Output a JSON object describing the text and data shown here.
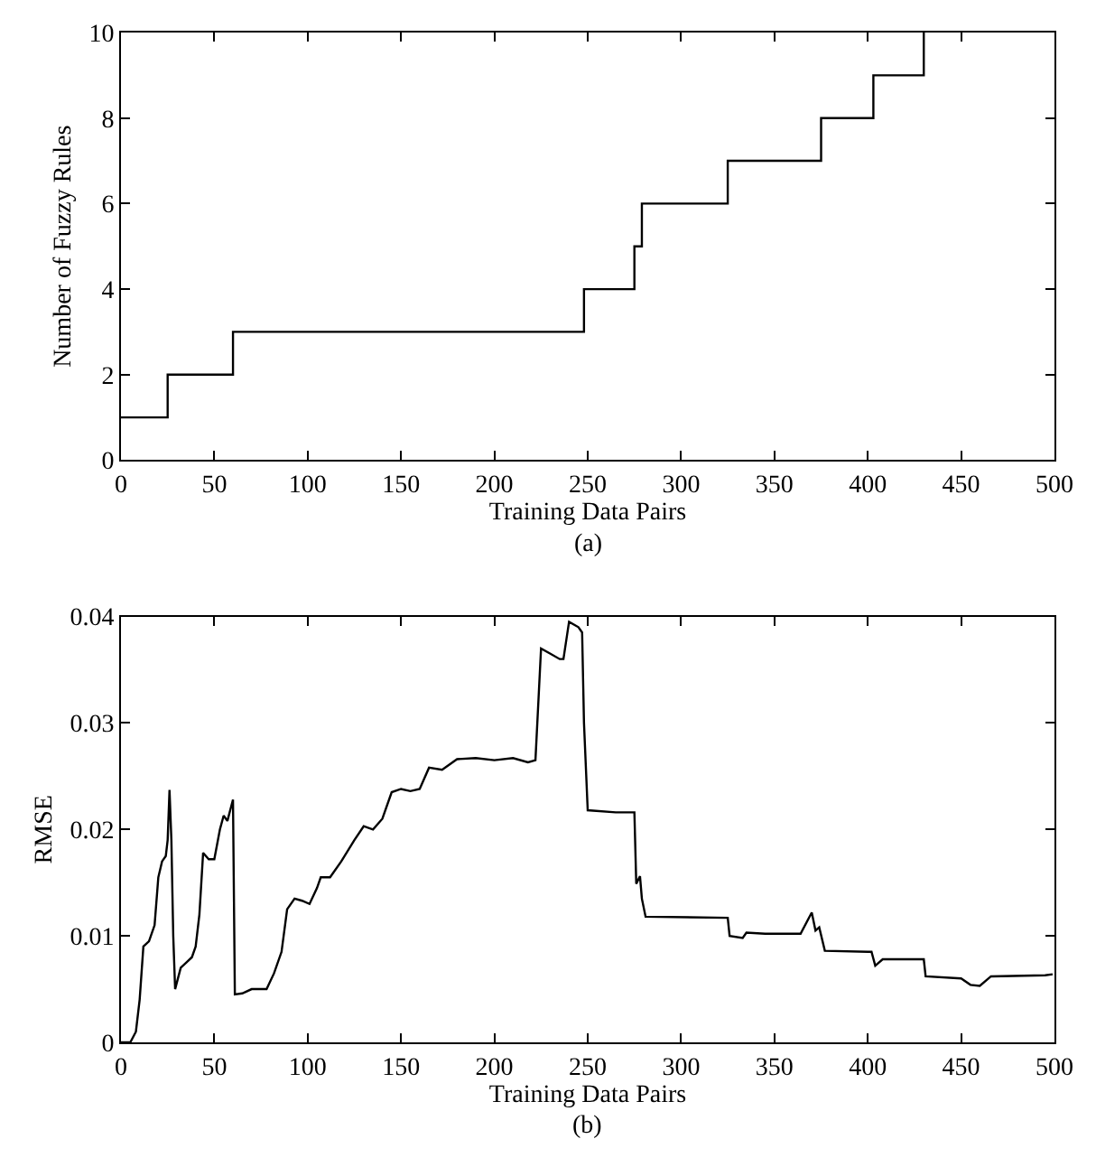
{
  "chart_data": [
    {
      "type": "step",
      "xlabel": "Training Data Pairs",
      "ylabel": "Number of Fuzzy Rules",
      "annotations": [
        "(a)"
      ],
      "xlim": [
        0,
        500
      ],
      "ylim": [
        0,
        10
      ],
      "xticks": [
        0,
        50,
        100,
        150,
        200,
        250,
        300,
        350,
        400,
        450,
        500
      ],
      "yticks": [
        0,
        2,
        4,
        6,
        8,
        10
      ],
      "x": [
        0,
        25,
        60,
        248,
        275,
        279,
        325,
        375,
        403,
        430
      ],
      "series": [
        {
          "color": "#000000",
          "values": [
            1,
            2,
            3,
            4,
            5,
            6,
            7,
            8,
            9,
            10
          ]
        }
      ]
    },
    {
      "type": "line",
      "xlabel": "Training Data Pairs",
      "ylabel": "RMSE",
      "annotations": [
        "(b)"
      ],
      "xlim": [
        0,
        500
      ],
      "ylim": [
        0,
        0.04
      ],
      "xticks": [
        0,
        50,
        100,
        150,
        200,
        250,
        300,
        350,
        400,
        450,
        500
      ],
      "yticks": [
        0,
        0.01,
        0.02,
        0.03,
        0.04
      ],
      "x": [
        0,
        5,
        8,
        10,
        12,
        15,
        18,
        20,
        22,
        24,
        25,
        26,
        27,
        28,
        29,
        32,
        35,
        38,
        40,
        42,
        44,
        47,
        50,
        53,
        55,
        57,
        60,
        61,
        65,
        70,
        78,
        82,
        86,
        89,
        93,
        97,
        101,
        105,
        107,
        112,
        118,
        125,
        130,
        135,
        140,
        145,
        150,
        155,
        160,
        165,
        172,
        180,
        190,
        200,
        210,
        218,
        222,
        225,
        230,
        235,
        237,
        240,
        245,
        247,
        248,
        250,
        265,
        275,
        276,
        278,
        279,
        281,
        325,
        326,
        333,
        335,
        345,
        364,
        370,
        372,
        374,
        377,
        400,
        402,
        404,
        408,
        430,
        431,
        450,
        455,
        460,
        466,
        495,
        499
      ],
      "series": [
        {
          "color": "#000000",
          "values": [
            0,
            0,
            0.001,
            0.004,
            0.009,
            0.0095,
            0.011,
            0.0155,
            0.017,
            0.0175,
            0.019,
            0.0237,
            0.019,
            0.01,
            0.005,
            0.007,
            0.0075,
            0.008,
            0.009,
            0.012,
            0.0178,
            0.0172,
            0.0172,
            0.02,
            0.0213,
            0.0208,
            0.0228,
            0.0045,
            0.0046,
            0.005,
            0.005,
            0.0065,
            0.0085,
            0.0125,
            0.0135,
            0.0133,
            0.013,
            0.0145,
            0.0155,
            0.0155,
            0.017,
            0.019,
            0.0203,
            0.02,
            0.021,
            0.0235,
            0.0238,
            0.0236,
            0.0238,
            0.0258,
            0.0256,
            0.0266,
            0.0267,
            0.0265,
            0.0267,
            0.0263,
            0.0265,
            0.037,
            0.0365,
            0.036,
            0.036,
            0.0395,
            0.039,
            0.0385,
            0.03,
            0.0218,
            0.0216,
            0.0216,
            0.0149,
            0.0156,
            0.0135,
            0.0118,
            0.0117,
            0.01,
            0.0098,
            0.0103,
            0.0102,
            0.0102,
            0.0122,
            0.0105,
            0.0108,
            0.0086,
            0.0085,
            0.0085,
            0.0072,
            0.0078,
            0.0078,
            0.0062,
            0.006,
            0.0054,
            0.0053,
            0.0062,
            0.0063,
            0.0064
          ]
        }
      ]
    }
  ]
}
